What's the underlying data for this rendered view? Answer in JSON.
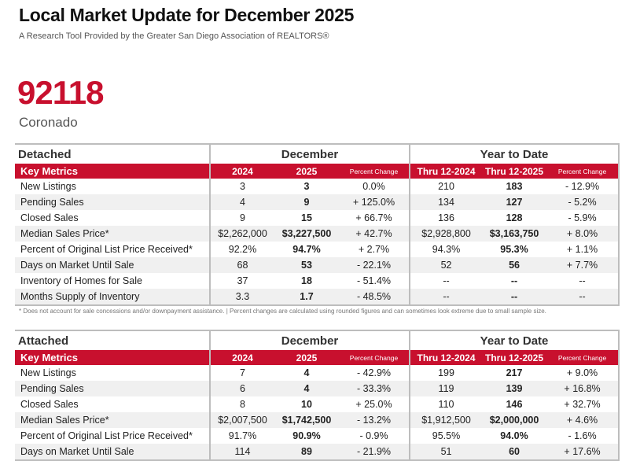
{
  "header": {
    "title": "Local Market Update for December 2025",
    "subtitle": "A Research Tool Provided by the Greater San Diego Association of REALTORS®"
  },
  "zip": "92118",
  "area": "Coronado",
  "columns": {
    "key_metrics": "Key Metrics",
    "month_group": "December",
    "ytd_group": "Year to Date",
    "m_prev": "2024",
    "m_curr": "2025",
    "ytd_prev": "Thru 12-2024",
    "ytd_curr": "Thru 12-2025",
    "pct": "Percent Change"
  },
  "detached": {
    "title": "Detached",
    "rows": [
      [
        "New Listings",
        "3",
        "3",
        "0.0%",
        "210",
        "183",
        "- 12.9%"
      ],
      [
        "Pending Sales",
        "4",
        "9",
        "+ 125.0%",
        "134",
        "127",
        "- 5.2%"
      ],
      [
        "Closed Sales",
        "9",
        "15",
        "+ 66.7%",
        "136",
        "128",
        "- 5.9%"
      ],
      [
        "Median Sales Price*",
        "$2,262,000",
        "$3,227,500",
        "+ 42.7%",
        "$2,928,800",
        "$3,163,750",
        "+ 8.0%"
      ],
      [
        "Percent of Original List Price Received*",
        "92.2%",
        "94.7%",
        "+ 2.7%",
        "94.3%",
        "95.3%",
        "+ 1.1%"
      ],
      [
        "Days on Market Until Sale",
        "68",
        "53",
        "- 22.1%",
        "52",
        "56",
        "+ 7.7%"
      ],
      [
        "Inventory of Homes for Sale",
        "37",
        "18",
        "- 51.4%",
        "--",
        "--",
        "--"
      ],
      [
        "Months Supply of Inventory",
        "3.3",
        "1.7",
        "- 48.5%",
        "--",
        "--",
        "--"
      ]
    ]
  },
  "footnote": "* Does not account for sale concessions and/or downpayment assistance.  |  Percent changes are calculated using rounded figures and can sometimes look extreme due to small sample size.",
  "attached": {
    "title": "Attached",
    "rows": [
      [
        "New Listings",
        "7",
        "4",
        "- 42.9%",
        "199",
        "217",
        "+ 9.0%"
      ],
      [
        "Pending Sales",
        "6",
        "4",
        "- 33.3%",
        "119",
        "139",
        "+ 16.8%"
      ],
      [
        "Closed Sales",
        "8",
        "10",
        "+ 25.0%",
        "110",
        "146",
        "+ 32.7%"
      ],
      [
        "Median Sales Price*",
        "$2,007,500",
        "$1,742,500",
        "- 13.2%",
        "$1,912,500",
        "$2,000,000",
        "+ 4.6%"
      ],
      [
        "Percent of Original List Price Received*",
        "91.7%",
        "90.9%",
        "- 0.9%",
        "95.5%",
        "94.0%",
        "- 1.6%"
      ],
      [
        "Days on Market Until Sale",
        "114",
        "89",
        "- 21.9%",
        "51",
        "60",
        "+ 17.6%"
      ]
    ]
  }
}
